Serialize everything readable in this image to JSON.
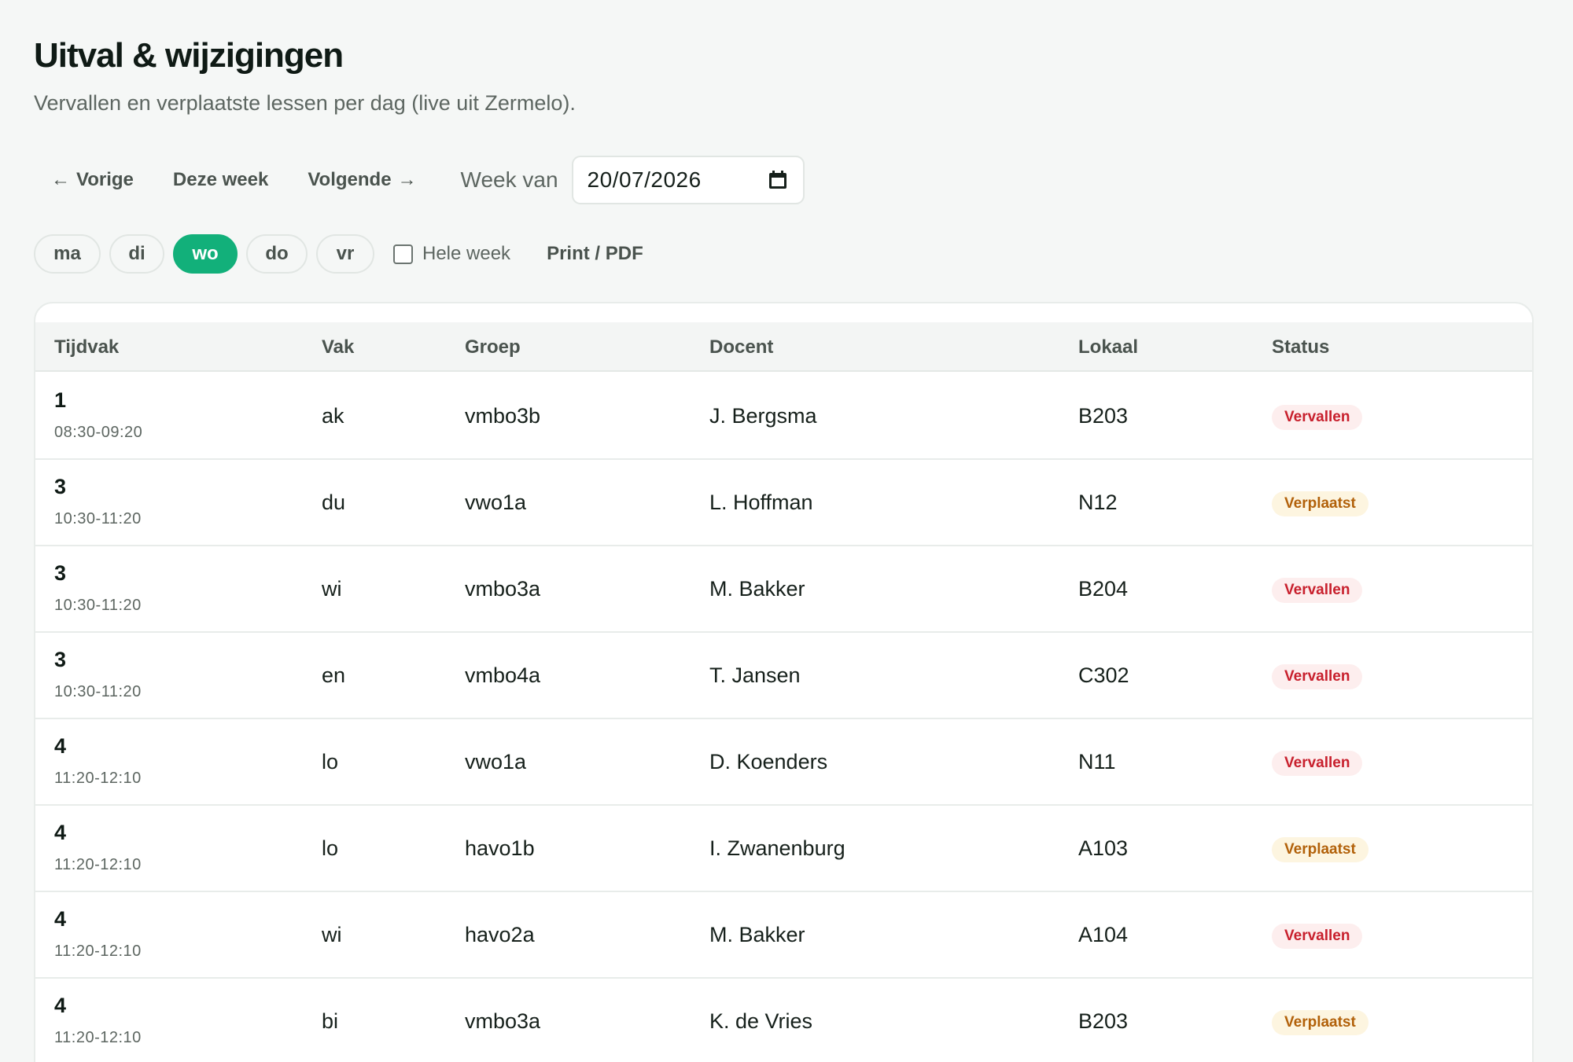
{
  "header": {
    "title": "Uitval & wijzigingen",
    "subtitle": "Vervallen en verplaatste lessen per dag (live uit Zermelo)."
  },
  "toolbar": {
    "prev_label": "Vorige",
    "this_week_label": "Deze week",
    "next_label": "Volgende",
    "week_label": "Week van",
    "date_value": "20/07/2026"
  },
  "days": {
    "items": [
      {
        "label": "ma",
        "active": false
      },
      {
        "label": "di",
        "active": false
      },
      {
        "label": "wo",
        "active": true
      },
      {
        "label": "do",
        "active": false
      },
      {
        "label": "vr",
        "active": false
      }
    ],
    "whole_week_label": "Hele week",
    "whole_week_checked": false,
    "print_label": "Print / PDF"
  },
  "table": {
    "columns": [
      "Tijdvak",
      "Vak",
      "Groep",
      "Docent",
      "Lokaal",
      "Status"
    ],
    "rows": [
      {
        "period": "1",
        "time": "08:30-09:20",
        "vak": "ak",
        "groep": "vmbo3b",
        "docent": "J. Bergsma",
        "lokaal": "B203",
        "status": "Vervallen"
      },
      {
        "period": "3",
        "time": "10:30-11:20",
        "vak": "du",
        "groep": "vwo1a",
        "docent": "L. Hoffman",
        "lokaal": "N12",
        "status": "Verplaatst"
      },
      {
        "period": "3",
        "time": "10:30-11:20",
        "vak": "wi",
        "groep": "vmbo3a",
        "docent": "M. Bakker",
        "lokaal": "B204",
        "status": "Vervallen"
      },
      {
        "period": "3",
        "time": "10:30-11:20",
        "vak": "en",
        "groep": "vmbo4a",
        "docent": "T. Jansen",
        "lokaal": "C302",
        "status": "Vervallen"
      },
      {
        "period": "4",
        "time": "11:20-12:10",
        "vak": "lo",
        "groep": "vwo1a",
        "docent": "D. Koenders",
        "lokaal": "N11",
        "status": "Vervallen"
      },
      {
        "period": "4",
        "time": "11:20-12:10",
        "vak": "lo",
        "groep": "havo1b",
        "docent": "I. Zwanenburg",
        "lokaal": "A103",
        "status": "Verplaatst"
      },
      {
        "period": "4",
        "time": "11:20-12:10",
        "vak": "wi",
        "groep": "havo2a",
        "docent": "M. Bakker",
        "lokaal": "A104",
        "status": "Vervallen"
      },
      {
        "period": "4",
        "time": "11:20-12:10",
        "vak": "bi",
        "groep": "vmbo3a",
        "docent": "K. de Vries",
        "lokaal": "B203",
        "status": "Verplaatst"
      }
    ]
  },
  "colors": {
    "accent": "#12b07a",
    "vervallen_text": "#c8202d",
    "vervallen_bg": "#fdeeee",
    "verplaatst_text": "#b2610a",
    "verplaatst_bg": "#fdf5e0"
  },
  "icons": {
    "prev": "arrow-left-icon",
    "next": "arrow-right-icon",
    "date": "calendar-icon"
  }
}
